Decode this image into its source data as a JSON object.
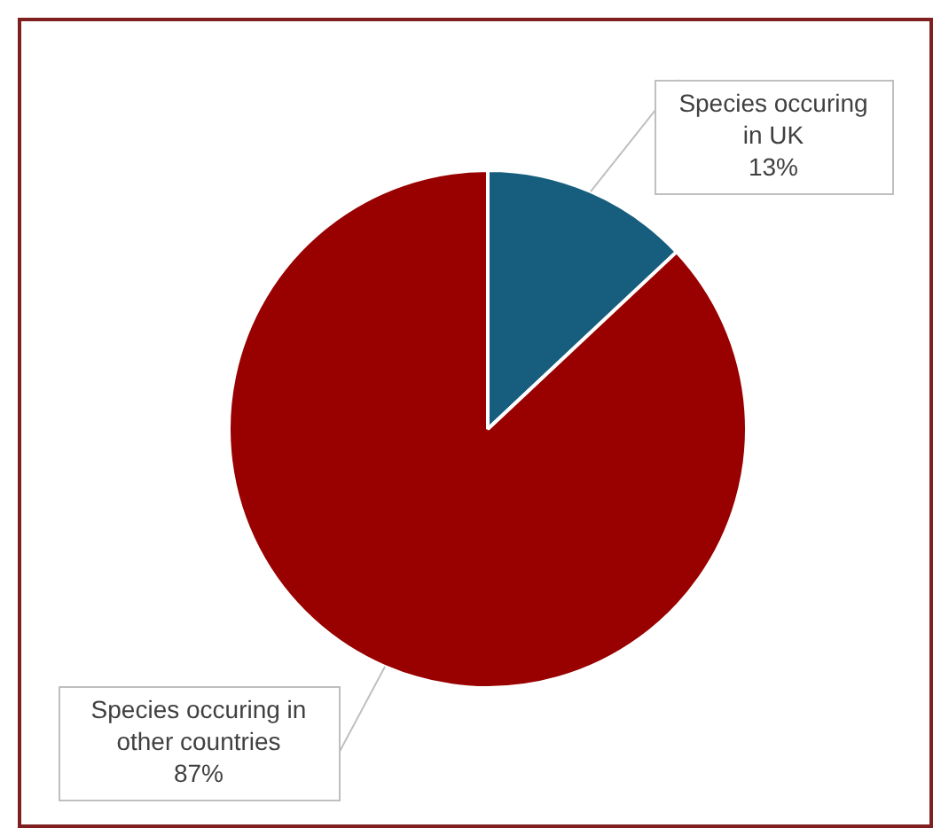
{
  "chart_data": {
    "type": "pie",
    "categories": [
      "Species occuring in UK",
      "Species occuring in other countries"
    ],
    "values": [
      13,
      87
    ],
    "colors": [
      "#175e7e",
      "#990000"
    ],
    "value_labels": [
      "13%",
      "87%"
    ],
    "legend": false
  }
}
